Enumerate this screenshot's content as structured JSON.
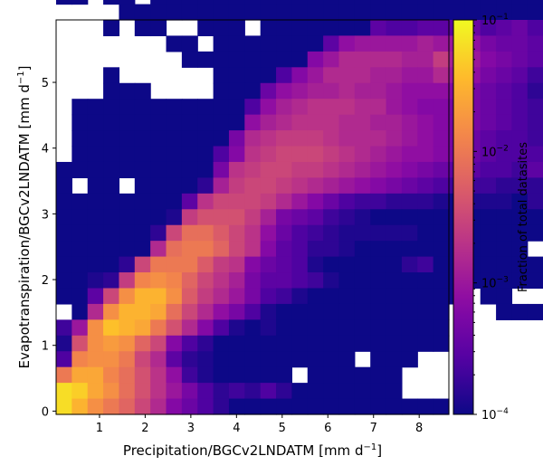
{
  "chart_data": {
    "type": "heatmap",
    "xlabel": "Precipitation/BGCv2LNDATM [mm d$^{-1}$]",
    "xlabel_main": "Precipitation/BGCv2LNDATM [mm d",
    "xlabel_sup": "−1",
    "xlabel_end": "]",
    "ylabel": "Evapotranspiration/BGCv2LNDATM [mm d$^{-1}$]",
    "ylabel_main": "Evapotranspiration/BGCv2LNDATM [mm d",
    "ylabel_sup": "−1",
    "ylabel_end": "]",
    "xlim": [
      0.05,
      8.65
    ],
    "ylim": [
      -0.05,
      5.95
    ],
    "bin_width_x": 0.344,
    "bin_width_y": 0.24,
    "xticks": [
      "1",
      "2",
      "3",
      "4",
      "5",
      "6",
      "7",
      "8"
    ],
    "xtick_values": [
      1,
      2,
      3,
      4,
      5,
      6,
      7,
      8
    ],
    "yticks": [
      "0",
      "1",
      "2",
      "3",
      "4",
      "5"
    ],
    "ytick_values": [
      0,
      1,
      2,
      3,
      4,
      5
    ],
    "colorbar": {
      "label": "Fraction of total datasites",
      "scale": "log",
      "vmin": 0.0001,
      "vmax": 0.1,
      "colormap": "plasma",
      "tick_values": [
        0.0001,
        0.001,
        0.01,
        0.1
      ],
      "tick_mantissa": [
        "10",
        "10",
        "10",
        "10"
      ],
      "tick_exponents": [
        "−4",
        "−3",
        "−2",
        "−1"
      ]
    },
    "grid": false,
    "rows_top_to_bottom_log10_fraction": [
      "-4,-4,-4,-4,-4,-4,-4,_,_,_,_,_,_,-4,_,_,_,_,_,_,_,_,_,_,-4,-4,_,_,_,_,_",
      "_,_,-4,_,-4,-4,-4,-4,-4,_,_,_,_,-4,-4,_,-4,_,-4,-4,-4,-4,_,_,-4,-4,_,_,_,_,_",
      "_,_,-4,-4,-4,-4,-4,-4,-4,-4,-4,-4,_,-4,-4,-4,-4,-4,-4,-4,-4,-4,-4,-4,-4,-4,-4,_,_,_,_",
      "-4,-4,-4,-4,-4,-4,-4,-4,_,_,-4,-4,_,-4,-4,-4,-4,-4,-4,-4,-4,-4,-4,-4,-4,-4,-4,-4,-4,_,_",
      "-4,-4,-4,-4,-4,-4,_,_,_,-4,-4,-4,-4,-4,_,-4,-4,-4,-4,-4,-4,-4,-4,-4,-4,-4,-4,-4,-4,-4,-4",
      "-4,-4,_,-4,-4,_,-4,-4,-4,-4,-4,-4,-4,-4,-4,-4,-4,-4,-4,-4,-4,-4,-4,-4,-4,-4,-4,-4,-4,-4,-4",
      "_,_,_,_,-4,-4,-4,-4,-4,-4,-4,-4,-4,-4,-4,-4,-4,-4,-4,-4,-4,-4,-4,-4,-4,-4,-4,-4,-4,-4,-4",
      "_,_,_,-4,_,-4,-4,_,_,-4,-4,-4,_,-4,-4,-4,-4,-4,-4,-4,-3.5,-3.6,-3.6,-3.5,-3.5,-3.5,-3.4,-3.6,-3.5,-3.4,-3.6",
      "_,_,_,_,_,_,_,-4,-4,_,-4,-4,-4,-4,-4,-4,-4,-3.5,-3.1,-3.0,-3.0,-3.0,-3.0,-2.9,-3.0,-3.0,-3.1,-3.3,-3.4,-3.4,-3.5",
      "_,_,_,_,_,_,_,_,-4,-4,-4,-4,-4,-4,-4,-4,-3.2,-3.0,-2.8,-2.8,-2.8,-2.8,-2.9,-2.9,-2.6,-2.9,-3.0,-3.2,-3.3,-3.4,-3.5",
      "_,_,_,-4,_,_,_,_,_,_,-4,-4,-4,-4,-3.6,-3.2,-3.0,-2.8,-2.8,-2.8,-2.9,-2.9,-3.0,-3.0,-2.8,-3.0,-3.1,-3.3,-3.4,-3.5,-3.7",
      "_,_,_,-4,-4,-4,_,_,_,_,-4,-4,-4,-3.4,-3.1,-3.0,-2.9,-2.9,-2.8,-2.9,-2.9,-3.0,-3.1,-3.1,-3.1,-3.2,-3.3,-3.4,-3.5,-3.6,-3.8",
      "_,-4,-4,-4,-4,-4,-4,-4,-4,-4,-4,-4,-3.6,-3.1,-2.9,-2.8,-2.7,-2.7,-2.7,-2.8,-2.8,-3.0,-3.1,-3.2,-3.2,-3.3,-3.3,-3.4,-3.5,-3.6,-3.7",
      "_,-4,-4,-4,-4,-4,-4,-4,-4,-4,-4,-4,-3.1,-2.9,-2.8,-2.7,-2.7,-2.7,-2.8,-2.8,-2.9,-2.9,-3.0,-3.1,-3.2,-3.3,-3.3,-3.4,-3.5,-3.6,-3.7",
      "_,-4,-4,-4,-4,-4,-4,-4,-4,-4,-4,-3.3,-2.8,-2.7,-2.6,-2.6,-2.6,-2.7,-2.8,-2.8,-2.8,-2.9,-3.0,-3.1,-3.2,-3.3,-3.4,-3.5,-3.6,-3.6,-3.7",
      "_,-4,-4,-4,-4,-4,-4,-4,-4,-4,-3.6,-3.2,-2.7,-2.6,-2.5,-2.5,-2.5,-2.6,-2.7,-2.8,-2.9,-3.0,-3.1,-3.1,-3.2,-3.3,-3.4,-3.5,-3.6,-3.6,-3.6",
      "-4,-4,-4,-4,-4,-4,-4,-4,-4,-4,-3.3,-2.7,-2.6,-2.5,-2.5,-2.6,-2.6,-2.7,-2.8,-2.9,-3.0,-3.1,-3.2,-3.3,-3.4,-3.5,-3.5,-3.6,-3.6,-3.7,-3.5",
      "-4,_,-4,-4,_,-4,-4,-4,-4,-3.8,-2.9,-2.6,-2.5,-2.5,-2.6,-2.7,-2.8,-2.9,-3.0,-3.1,-3.2,-3.3,-3.4,-3.5,-3.6,-3.7,-3.7,-3.7,-3.8,-3.8,-3.8",
      "-4,-4,-4,-4,-4,-4,-4,-4,-3.5,-2.7,-2.5,-2.5,-2.5,-2.6,-2.8,-3.0,-3.2,-3.4,-3.6,-3.7,-3.7,-3.8,-3.8,-3.8,-3.9,-4,-3.9,-3.9,-3.9,-4,-3.8",
      "-4,-4,-4,-4,-4,-4,-4,-3.9,-2.6,-2.4,-2.4,-2.4,-2.6,-2.9,-3.3,-3.4,-3.5,-3.7,-3.8,-3.9,-4,-4,-4,-4,-4,-4,-4,-4,-4,-4,-4",
      "-4,-4,-4,-4,-4,-4,-3.8,-2.5,-2.1,-2.1,-2.3,-2.5,-2.7,-3.1,-3.4,-3.6,-3.7,-3.8,-3.9,-3.9,-3.9,-3.9,-3.9,-4,-4,-4,-4,-4,-4,-4,-4",
      "-4,-4,-4,-4,-4,-4,-2.8,-2.1,-2.0,-2.0,-2.2,-2.5,-2.7,-3.2,-3.5,-3.6,-3.8,-3.8,-3.9,-4,-4,-4,-4,-4,-4,-4,-4,-4,-4,-4,_",
      "-4,-4,-4,-4,-3.8,-2.5,-2.0,-2.0,-2.0,-2.3,-2.6,-2.7,-3.2,-3.4,-3.5,-3.6,-3.9,-4,-4,-4,-4,-4,-3.8,-3.7,-4,-4,-4,-4,-4,-4,-4",
      "-4,-4,-3.9,-3.8,-2.6,-1.9,-1.8,-1.9,-2.2,-2.5,-2.7,-2.9,-3.3,-3.5,-3.5,-3.6,-3.7,-3.9,-4,-4,-4,-4,-4,-4,-4,-4,-4,-4,-4,-4,-4",
      "-4,-4,-3.5,-2.5,-1.8,-1.5,-1.5,-1.8,-2.3,-2.6,-2.8,-3.0,-3.3,-3.6,-3.7,-3.9,-4,-4,-4,-4,-4,-4,-4,-4,-4,-4,_,-4,-4,_,_",
      "_,-4,-2.8,-1.8,-1.5,-1.5,-1.6,-2.1,-2.5,-2.8,-3.1,-3.3,-3.6,-3.9,-4,-4,-4,-4,-4,-4,-4,-4,-4,-4,-4,_,_,_,-4,-4,-4",
      "-3.7,-3.0,-1.8,-1.4,-1.5,-1.6,-2.0,-2.4,-2.8,-3.2,-3.6,-3.9,-4,-3.9,-4,-4,-4,-4,-4,-4,-4,-4,-4,-4,-4,_,_,_,_,_,_",
      "-3.9,-2.4,-1.8,-1.7,-1.8,-2.2,-2.5,-3.2,-3.6,-3.8,-4,-4,-4,-4,-4,-4,-4,-4,-4,-4,-4,-4,-4,-4,-4,_,_,_,_,_,_",
      "-3.6,-1.9,-1.8,-1.8,-2.0,-2.5,-2.8,-3.5,-3.8,-3.9,-4,-4,-4,-4,-4,-4,-4,-4,-4,_,-4,-4,-4,_,_,_,_,_,_,_,_",
      "-2.0,-1.6,-1.6,-1.9,-2.1,-2.4,-2.7,-3.1,-3.7,-3.9,-4,-4,-4,-4,-4,_,-4,-4,-4,-4,-4,-4,_,_,_,_,_,_,_,_,_",
      "-1.2,-1.3,-1.6,-1.8,-2.1,-2.4,-2.7,-3.0,-3.3,-3.6,-3.8,-3.7,-3.8,-3.6,-3.8,-4,-4,-4,-4,-4,-4,-4,_,_,_,_,_,_,_,_,_",
      "-1.2,-1.5,-1.8,-2.0,-2.2,-2.5,-2.8,-3.2,-3.4,-3.6,-3.8,-4,-4,-4,-4,-4,-4,-4,-4,-4,-4,-4,-4,-4,-4,_,_,_,_,_,_"
    ]
  }
}
